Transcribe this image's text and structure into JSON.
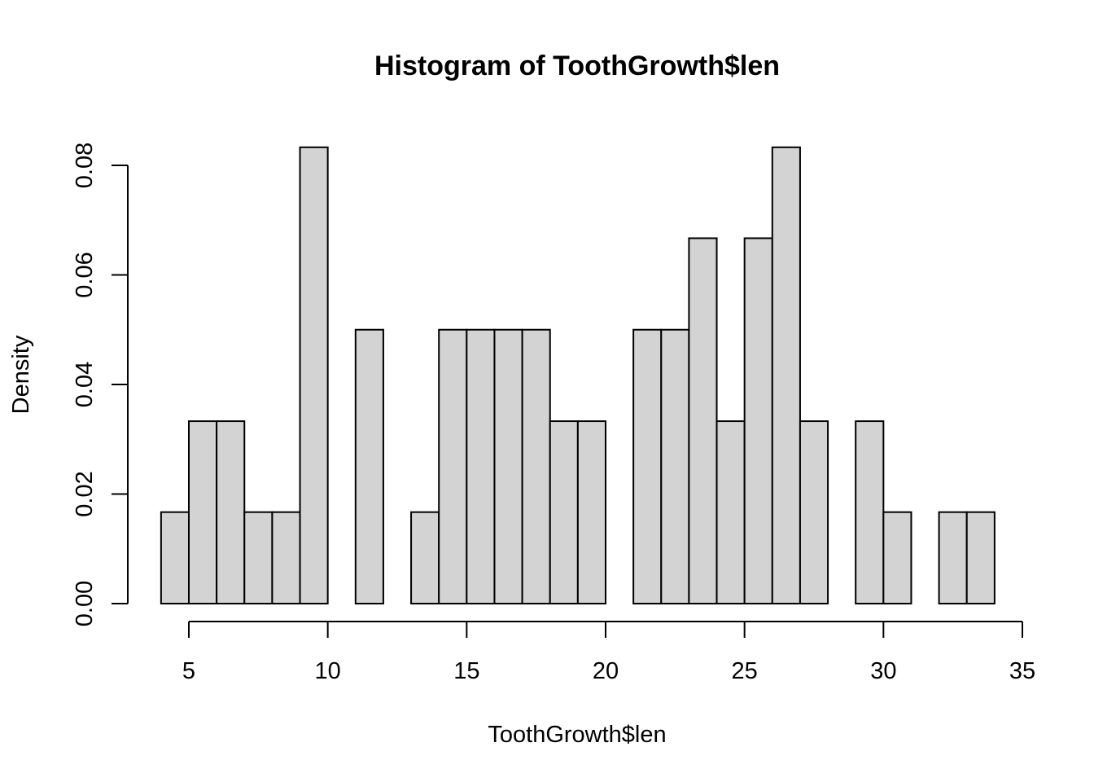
{
  "chart_data": {
    "type": "bar",
    "title": "Histogram of ToothGrowth$len",
    "xlabel": "ToothGrowth$len",
    "ylabel": "Density",
    "bin_width": 1,
    "bins": [
      {
        "start": 4,
        "end": 5,
        "density": 0.0167
      },
      {
        "start": 5,
        "end": 6,
        "density": 0.0333
      },
      {
        "start": 6,
        "end": 7,
        "density": 0.0333
      },
      {
        "start": 7,
        "end": 8,
        "density": 0.0167
      },
      {
        "start": 8,
        "end": 9,
        "density": 0.0167
      },
      {
        "start": 9,
        "end": 10,
        "density": 0.0833
      },
      {
        "start": 10,
        "end": 11,
        "density": 0
      },
      {
        "start": 11,
        "end": 12,
        "density": 0.05
      },
      {
        "start": 12,
        "end": 13,
        "density": 0
      },
      {
        "start": 13,
        "end": 14,
        "density": 0.0167
      },
      {
        "start": 14,
        "end": 15,
        "density": 0.05
      },
      {
        "start": 15,
        "end": 16,
        "density": 0.05
      },
      {
        "start": 16,
        "end": 17,
        "density": 0.05
      },
      {
        "start": 17,
        "end": 18,
        "density": 0.05
      },
      {
        "start": 18,
        "end": 19,
        "density": 0.0333
      },
      {
        "start": 19,
        "end": 20,
        "density": 0.0333
      },
      {
        "start": 20,
        "end": 21,
        "density": 0
      },
      {
        "start": 21,
        "end": 22,
        "density": 0.05
      },
      {
        "start": 22,
        "end": 23,
        "density": 0.05
      },
      {
        "start": 23,
        "end": 24,
        "density": 0.0667
      },
      {
        "start": 24,
        "end": 25,
        "density": 0.0333
      },
      {
        "start": 25,
        "end": 26,
        "density": 0.0667
      },
      {
        "start": 26,
        "end": 27,
        "density": 0.0833
      },
      {
        "start": 27,
        "end": 28,
        "density": 0.0333
      },
      {
        "start": 28,
        "end": 29,
        "density": 0
      },
      {
        "start": 29,
        "end": 30,
        "density": 0.0333
      },
      {
        "start": 30,
        "end": 31,
        "density": 0.0167
      },
      {
        "start": 31,
        "end": 32,
        "density": 0
      },
      {
        "start": 32,
        "end": 33,
        "density": 0.0167
      },
      {
        "start": 33,
        "end": 34,
        "density": 0.0167
      }
    ],
    "xlim": [
      4,
      35
    ],
    "ylim": [
      0,
      0.08
    ],
    "xticks": [
      5,
      10,
      15,
      20,
      25,
      30,
      35
    ],
    "xtick_labels": [
      "5",
      "10",
      "15",
      "20",
      "25",
      "30",
      "35"
    ],
    "yticks": [
      0,
      0.02,
      0.04,
      0.06,
      0.08
    ],
    "ytick_labels": [
      "0.00",
      "0.02",
      "0.04",
      "0.06",
      "0.08"
    ],
    "bar_color": "#d3d3d3",
    "edge_color": "#000000",
    "grid": false
  }
}
